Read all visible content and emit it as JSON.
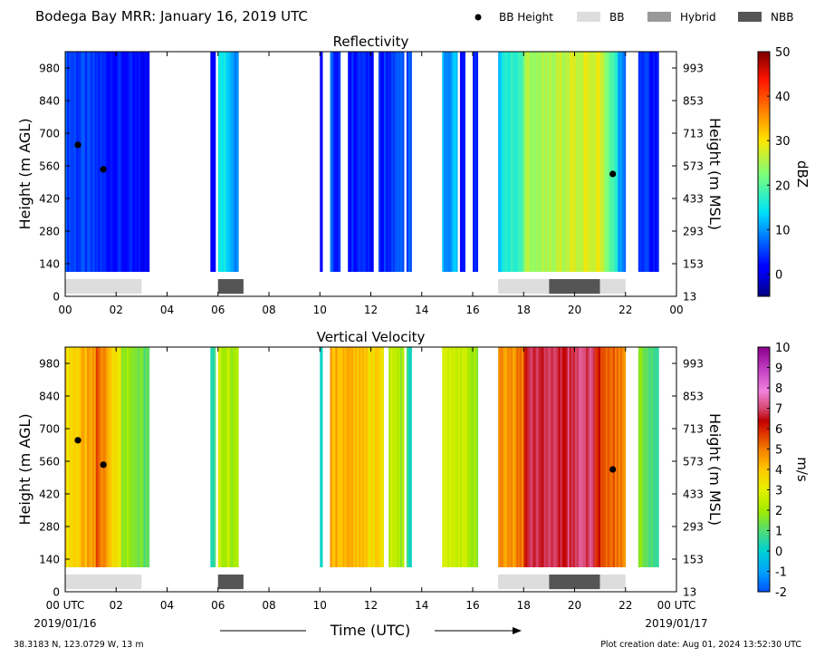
{
  "figure": {
    "title": "Bodega Bay MRR:  January 16, 2019 UTC",
    "xlabel": "Time (UTC)",
    "footer_left": "38.3183 N, 123.0729 W, 13 m",
    "footer_right": "Plot creation date: Aug 01, 2024 13:52:30 UTC",
    "legend": [
      {
        "label": "BB Height",
        "kind": "dot",
        "color": "#000000"
      },
      {
        "label": "BB",
        "kind": "box",
        "color": "#dddddd"
      },
      {
        "label": "Hybrid",
        "kind": "box",
        "color": "#999999"
      },
      {
        "label": "NBB",
        "kind": "box",
        "color": "#555555"
      }
    ],
    "x_ticks_top": [
      "00",
      "02",
      "04",
      "06",
      "08",
      "10",
      "12",
      "14",
      "16",
      "18",
      "20",
      "22",
      "00"
    ],
    "x_ticks_bottom": [
      "00 UTC",
      "02",
      "04",
      "06",
      "08",
      "10",
      "12",
      "14",
      "16",
      "18",
      "20",
      "22",
      "00 UTC"
    ],
    "date_start": "2019/01/16",
    "date_end": "2019/01/17"
  },
  "chart_data": [
    {
      "type": "heatmap",
      "title": "Reflectivity",
      "xlabel": "",
      "ylabel": "Height (m AGL)",
      "ylabel_right": "Height (m MSL)",
      "xlim": [
        0,
        24
      ],
      "ylim": [
        0,
        1050
      ],
      "yticks": [
        0,
        140,
        280,
        420,
        560,
        700,
        840,
        980
      ],
      "yticks_right": [
        "13",
        "153",
        "293",
        "433",
        "573",
        "713",
        "853",
        "993"
      ],
      "colorbar": {
        "label": "dBZ",
        "min": -5,
        "max": 50,
        "ticks": [
          "0",
          "10",
          "20",
          "30",
          "40",
          "50"
        ],
        "tick_values": [
          0,
          10,
          20,
          30,
          40,
          50
        ],
        "colormap": "jet"
      },
      "data_height_range": [
        105,
        1050
      ],
      "bb_height_points": [
        {
          "time": 0.5,
          "height": 650
        },
        {
          "time": 1.5,
          "height": 545
        },
        {
          "time": 21.5,
          "height": 525
        }
      ],
      "bb_type_bars": [
        {
          "start": 0.0,
          "end": 3.0,
          "type": "BB"
        },
        {
          "start": 6.0,
          "end": 7.0,
          "type": "NBB"
        },
        {
          "start": 17.0,
          "end": 19.0,
          "type": "BB"
        },
        {
          "start": 19.0,
          "end": 21.0,
          "type": "NBB"
        },
        {
          "start": 21.0,
          "end": 22.0,
          "type": "BB"
        }
      ],
      "segments": [
        {
          "start": 0.0,
          "end": 3.3,
          "value_start": 6,
          "value_end": 1
        },
        {
          "start": 5.7,
          "end": 5.9,
          "value_start": 0,
          "value_end": 2
        },
        {
          "start": 6.0,
          "end": 6.8,
          "value_start": 17,
          "value_end": 8
        },
        {
          "start": 10.0,
          "end": 10.1,
          "value_start": 2,
          "value_end": 2
        },
        {
          "start": 10.4,
          "end": 10.8,
          "value_start": 7,
          "value_end": 3
        },
        {
          "start": 11.1,
          "end": 12.1,
          "value_start": 4,
          "value_end": 2
        },
        {
          "start": 12.3,
          "end": 13.3,
          "value_start": 4,
          "value_end": 6
        },
        {
          "start": 13.4,
          "end": 13.6,
          "value_start": 6,
          "value_end": 6
        },
        {
          "start": 14.8,
          "end": 15.4,
          "value_start": 10,
          "value_end": 12
        },
        {
          "start": 15.5,
          "end": 15.7,
          "value_start": 3,
          "value_end": 3
        },
        {
          "start": 16.0,
          "end": 16.2,
          "value_start": 2,
          "value_end": 2
        },
        {
          "start": 17.0,
          "end": 18.0,
          "value_start": 14,
          "value_end": 18
        },
        {
          "start": 18.0,
          "end": 21.0,
          "value_start": 25,
          "value_end": 28
        },
        {
          "start": 21.0,
          "end": 21.7,
          "value_start": 26,
          "value_end": 18
        },
        {
          "start": 21.7,
          "end": 22.0,
          "value_start": 10,
          "value_end": 7
        },
        {
          "start": 22.5,
          "end": 23.3,
          "value_start": 6,
          "value_end": 3
        }
      ]
    },
    {
      "type": "heatmap",
      "title": "Vertical Velocity",
      "xlabel": "",
      "ylabel": "Height (m AGL)",
      "ylabel_right": "Height (m MSL)",
      "xlim": [
        0,
        24
      ],
      "ylim": [
        0,
        1050
      ],
      "yticks": [
        0,
        140,
        280,
        420,
        560,
        700,
        840,
        980
      ],
      "yticks_right": [
        "13",
        "153",
        "293",
        "433",
        "573",
        "713",
        "853",
        "993"
      ],
      "colorbar": {
        "label": "m/s",
        "min": -2,
        "max": 10,
        "ticks": [
          "-2",
          "-1",
          "0",
          "1",
          "2",
          "3",
          "4",
          "5",
          "6",
          "7",
          "8",
          "9",
          "10"
        ],
        "tick_values": [
          -2,
          -1,
          0,
          1,
          2,
          3,
          4,
          5,
          6,
          7,
          8,
          9,
          10
        ],
        "colormap": "velocity"
      },
      "data_height_range": [
        105,
        1050
      ],
      "bb_height_points": [
        {
          "time": 0.5,
          "height": 650
        },
        {
          "time": 1.5,
          "height": 545
        },
        {
          "time": 21.5,
          "height": 525
        }
      ],
      "bb_type_bars": [
        {
          "start": 0.0,
          "end": 3.0,
          "type": "BB"
        },
        {
          "start": 6.0,
          "end": 7.0,
          "type": "NBB"
        },
        {
          "start": 17.0,
          "end": 19.0,
          "type": "BB"
        },
        {
          "start": 19.0,
          "end": 21.0,
          "type": "NBB"
        },
        {
          "start": 21.0,
          "end": 22.0,
          "type": "BB"
        }
      ],
      "segments": [
        {
          "start": 0.0,
          "end": 1.2,
          "value_start": 3.5,
          "value_end": 4.5
        },
        {
          "start": 1.2,
          "end": 2.2,
          "value_start": 5.5,
          "value_end": 3.0
        },
        {
          "start": 2.2,
          "end": 3.3,
          "value_start": 2.0,
          "value_end": 1.0
        },
        {
          "start": 5.7,
          "end": 5.9,
          "value_start": 0.5,
          "value_end": 0.5
        },
        {
          "start": 6.0,
          "end": 6.8,
          "value_start": 2.5,
          "value_end": 2.0
        },
        {
          "start": 10.0,
          "end": 10.1,
          "value_start": 0.5,
          "value_end": 0.5
        },
        {
          "start": 10.4,
          "end": 12.5,
          "value_start": 4.5,
          "value_end": 3.5
        },
        {
          "start": 12.7,
          "end": 13.3,
          "value_start": 2.5,
          "value_end": 2.0
        },
        {
          "start": 13.4,
          "end": 13.6,
          "value_start": 0.5,
          "value_end": 0.5
        },
        {
          "start": 14.8,
          "end": 16.2,
          "value_start": 3.0,
          "value_end": 2.0
        },
        {
          "start": 17.0,
          "end": 18.0,
          "value_start": 4.5,
          "value_end": 5.0
        },
        {
          "start": 18.0,
          "end": 20.8,
          "value_start": 6.5,
          "value_end": 7.0
        },
        {
          "start": 20.8,
          "end": 22.0,
          "value_start": 6.0,
          "value_end": 5.0
        },
        {
          "start": 22.5,
          "end": 23.3,
          "value_start": 1.5,
          "value_end": 1.0
        }
      ]
    }
  ]
}
